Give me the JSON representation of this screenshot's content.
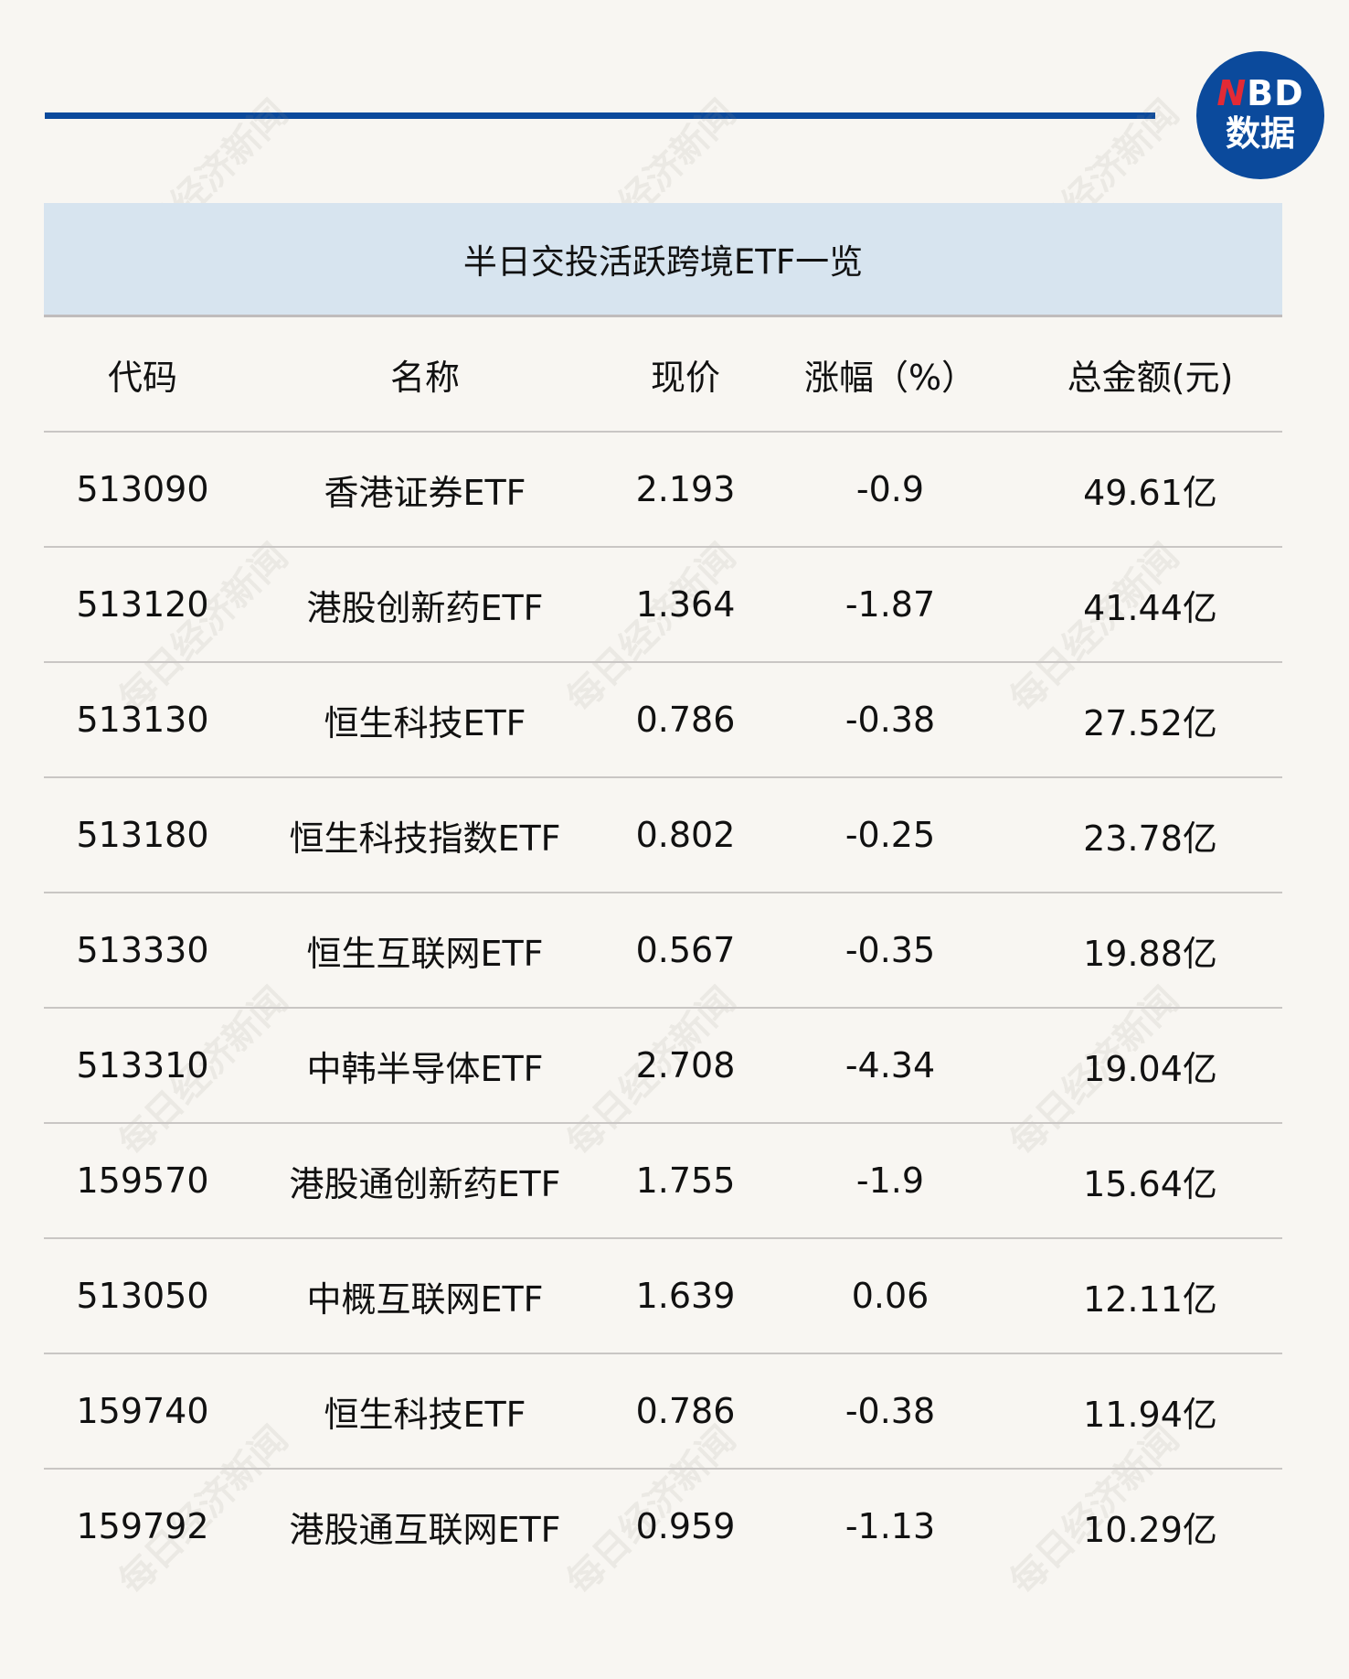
{
  "logo": {
    "line1_accent": "N",
    "line1_rest": "BD",
    "line2": "数据"
  },
  "watermark": "每日经济新闻",
  "table": {
    "title": "半日交投活跃跨境ETF一览",
    "headers": [
      "代码",
      "名称",
      "现价",
      "涨幅（%）",
      "总金额(元)"
    ],
    "rows": [
      [
        "513090",
        "香港证券ETF",
        "2.193",
        "-0.9",
        "49.61亿"
      ],
      [
        "513120",
        "港股创新药ETF",
        "1.364",
        "-1.87",
        "41.44亿"
      ],
      [
        "513130",
        "恒生科技ETF",
        "0.786",
        "-0.38",
        "27.52亿"
      ],
      [
        "513180",
        "恒生科技指数ETF",
        "0.802",
        "-0.25",
        "23.78亿"
      ],
      [
        "513330",
        "恒生互联网ETF",
        "0.567",
        "-0.35",
        "19.88亿"
      ],
      [
        "513310",
        "中韩半导体ETF",
        "2.708",
        "-4.34",
        "19.04亿"
      ],
      [
        "159570",
        "港股通创新药ETF",
        "1.755",
        "-1.9",
        "15.64亿"
      ],
      [
        "513050",
        "中概互联网ETF",
        "1.639",
        "0.06",
        "12.11亿"
      ],
      [
        "159740",
        "恒生科技ETF",
        "0.786",
        "-0.38",
        "11.94亿"
      ],
      [
        "159792",
        "港股通互联网ETF",
        "0.959",
        "-1.13",
        "10.29亿"
      ]
    ]
  },
  "colors": {
    "brand_blue": "#0b4a9c",
    "title_band": "#d7e4ef",
    "logo_red": "#e32a35",
    "background": "#f8f6f2"
  }
}
